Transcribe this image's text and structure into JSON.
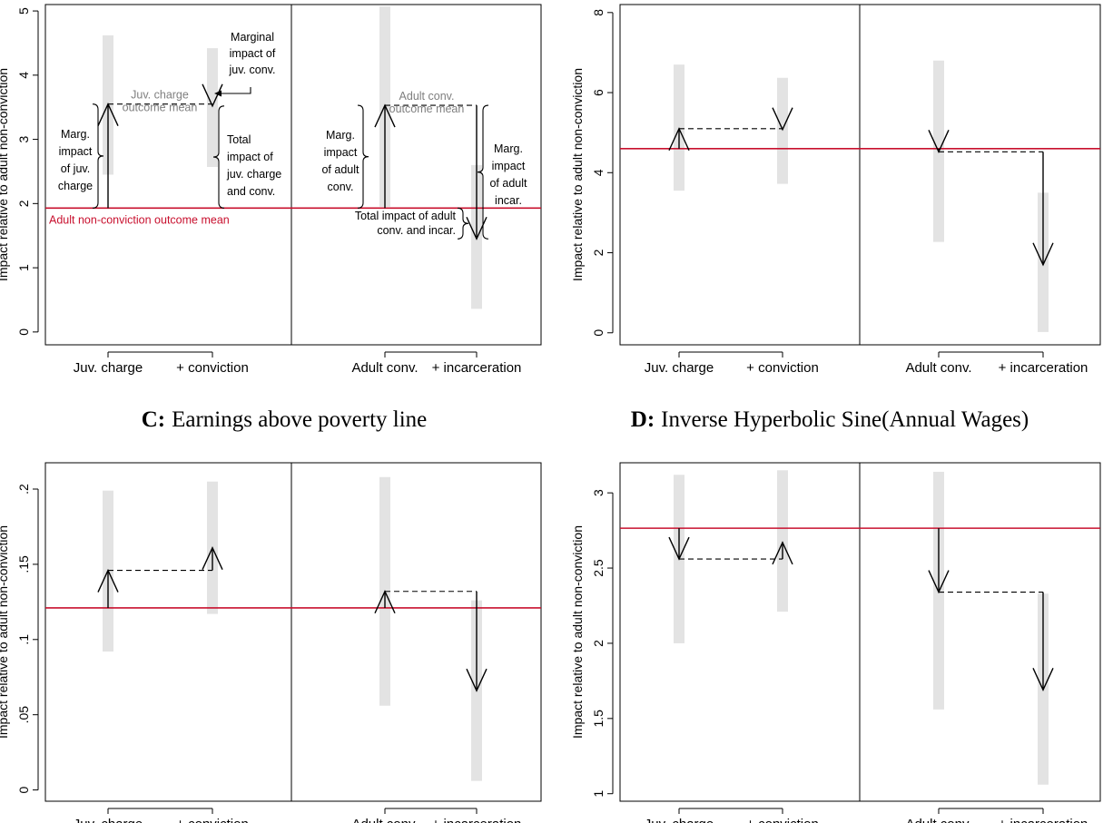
{
  "colors": {
    "bar": "#e3e3e3",
    "reference_line": "#c8102e",
    "axis": "#000000",
    "annotation_gray": "#7f7f7f"
  },
  "titles": {
    "C_letter": "C:",
    "C_text": "Earnings above poverty line",
    "D_letter": "D:",
    "D_text": "Inverse Hyperbolic Sine(Annual Wages)"
  },
  "chart_data": [
    {
      "id": "A",
      "type": "bar",
      "categories": [
        "Juv. charge",
        "+ conviction",
        "Adult conv.",
        "+ incarceration"
      ],
      "ylabel": "Impact relative to adult non-conviction",
      "ylim": [
        -0.2,
        5.1
      ],
      "yticks": [
        0,
        1,
        2,
        3,
        4,
        5
      ],
      "ytick_labels": [
        "0",
        "1",
        "2",
        "3",
        "4",
        "5"
      ],
      "baseline": 1.93,
      "ci": [
        [
          2.45,
          4.62
        ],
        [
          2.57,
          4.42
        ],
        [
          1.95,
          5.07
        ],
        [
          0.36,
          2.6
        ]
      ],
      "juv_levels": [
        3.55,
        3.52
      ],
      "adult_levels": [
        3.53,
        1.45
      ],
      "annotations": {
        "baseline_label": "Adult non-conviction outcome mean",
        "juv_mean_label": [
          "Juv. charge",
          "outcome mean"
        ],
        "adult_mean_label": [
          "Adult conv.",
          "outcome mean"
        ],
        "marg_juv_charge": [
          "Marg.",
          "impact",
          "of juv.",
          "charge"
        ],
        "marginal_juv_conv": [
          "Marginal",
          "impact of",
          "juv. conv."
        ],
        "total_juv": [
          "Total",
          "impact of",
          "juv. charge",
          "and conv."
        ],
        "marg_adult_conv": [
          "Marg.",
          "impact",
          "of adult",
          "conv."
        ],
        "marg_adult_incar": [
          "Marg.",
          "impact",
          "of adult",
          "incar."
        ],
        "total_adult": [
          "Total impact of adult",
          "conv. and incar."
        ]
      }
    },
    {
      "id": "B",
      "type": "bar",
      "categories": [
        "Juv. charge",
        "+ conviction",
        "Adult conv.",
        "+ incarceration"
      ],
      "ylabel": "Impact relative to adult non-conviction",
      "ylim": [
        -0.3,
        8.2
      ],
      "yticks": [
        0,
        2,
        4,
        6,
        8
      ],
      "ytick_labels": [
        "0",
        "2",
        "4",
        "6",
        "8"
      ],
      "baseline": 4.6,
      "ci": [
        [
          3.55,
          6.7
        ],
        [
          3.72,
          6.37
        ],
        [
          2.27,
          6.8
        ],
        [
          0.02,
          3.5
        ]
      ],
      "juv_levels": [
        5.1,
        5.08
      ],
      "adult_levels": [
        4.52,
        1.7
      ]
    },
    {
      "id": "C",
      "type": "bar",
      "categories": [
        "Juv. charge",
        "+ conviction",
        "Adult conv.",
        "+ incarceration"
      ],
      "ylabel": "Impact relative to adult non-conviction",
      "ylim": [
        -0.0075,
        0.2175
      ],
      "yticks": [
        0,
        0.05,
        0.1,
        0.15,
        0.2
      ],
      "ytick_labels": [
        "0",
        ".05",
        ".1",
        ".15",
        ".2"
      ],
      "baseline": 0.121,
      "ci": [
        [
          0.092,
          0.199
        ],
        [
          0.117,
          0.205
        ],
        [
          0.056,
          0.208
        ],
        [
          0.006,
          0.126
        ]
      ],
      "juv_levels": [
        0.146,
        0.161
      ],
      "adult_levels": [
        0.132,
        0.066
      ]
    },
    {
      "id": "D",
      "type": "bar",
      "categories": [
        "Juv. charge",
        "+ conviction",
        "Adult conv.",
        "+ incarceration"
      ],
      "ylabel": "Impact relative to adult non-conviction",
      "ylim": [
        0.95,
        3.2
      ],
      "yticks": [
        1,
        1.5,
        2,
        2.5,
        3
      ],
      "ytick_labels": [
        "1",
        "1.5",
        "2",
        "2.5",
        "3"
      ],
      "baseline": 2.765,
      "ci": [
        [
          2.0,
          3.12
        ],
        [
          2.21,
          3.15
        ],
        [
          1.56,
          3.14
        ],
        [
          1.06,
          2.33
        ]
      ],
      "juv_levels": [
        2.56,
        2.67
      ],
      "adult_levels": [
        2.34,
        1.69
      ]
    }
  ]
}
